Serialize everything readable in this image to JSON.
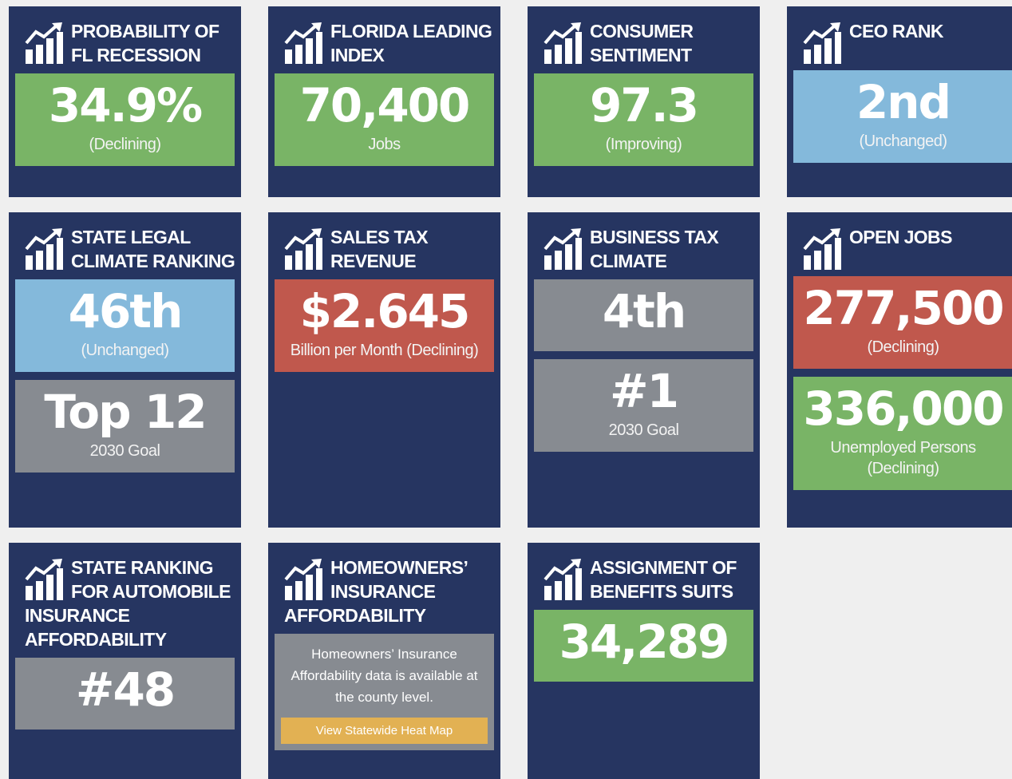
{
  "cards": [
    {
      "title_lines": [
        "PROBABILITY OF",
        "FL RECESSION"
      ],
      "boxes": [
        {
          "value": "34.9%",
          "sub": [
            "(Declining)"
          ],
          "color": "#79b466"
        }
      ]
    },
    {
      "title_lines": [
        "FLORIDA LEADING",
        "INDEX"
      ],
      "boxes": [
        {
          "value": "70,400",
          "sub": [
            "Jobs"
          ],
          "color": "#79b466"
        }
      ]
    },
    {
      "title_lines": [
        "CONSUMER",
        "SENTIMENT"
      ],
      "boxes": [
        {
          "value": "97.3",
          "sub": [
            "(Improving)"
          ],
          "color": "#79b466"
        }
      ]
    },
    {
      "title_lines": [
        "CEO RANK"
      ],
      "boxes": [
        {
          "value": "2nd",
          "sub": [
            "(Unchanged)"
          ],
          "color": "#84b9db"
        }
      ]
    },
    {
      "title_lines": [
        "STATE LEGAL",
        "CLIMATE RANKING"
      ],
      "boxes": [
        {
          "value": "46th",
          "sub": [
            "(Unchanged)"
          ],
          "color": "#84b9db"
        },
        {
          "value": "Top 12",
          "sub": [
            "2030 Goal"
          ],
          "color": "#878b91"
        }
      ]
    },
    {
      "title_lines": [
        "SALES TAX",
        "REVENUE"
      ],
      "boxes": [
        {
          "value": "$2.645",
          "sub": [
            "Billion per Month (Declining)"
          ],
          "color": "#c0584d"
        }
      ]
    },
    {
      "title_lines": [
        "BUSINESS TAX",
        "CLIMATE"
      ],
      "boxes": [
        {
          "value": "4th",
          "sub": [],
          "color": "#878b91"
        },
        {
          "value": "#1",
          "sub": [
            "2030 Goal"
          ],
          "color": "#878b91"
        }
      ]
    },
    {
      "title_lines": [
        "OPEN JOBS"
      ],
      "boxes": [
        {
          "value": "277,500",
          "sub": [
            "(Declining)"
          ],
          "color": "#c0584d"
        },
        {
          "value": "336,000",
          "sub": [
            "Unemployed Persons",
            "(Declining)"
          ],
          "color": "#79b466"
        }
      ]
    },
    {
      "title_lines": [
        "STATE RANKING",
        "FOR AUTOMOBILE",
        "INSURANCE",
        "AFFORDABILITY"
      ],
      "boxes": [
        {
          "value": "#48",
          "sub": [],
          "color": "#878b91"
        }
      ]
    },
    {
      "title_lines": [
        "HOMEOWNERS’",
        "INSURANCE",
        "AFFORDABILITY"
      ],
      "boxes": [
        {
          "text": "Homeowners’ Insurance Affordability data is available at the county level.",
          "button": "View Statewide Heat Map",
          "color": "#878b91"
        }
      ]
    },
    {
      "title_lines": [
        "ASSIGNMENT OF",
        "BENEFITS SUITS"
      ],
      "boxes": [
        {
          "value": "34,289",
          "sub": [],
          "color": "#79b466"
        }
      ]
    }
  ]
}
